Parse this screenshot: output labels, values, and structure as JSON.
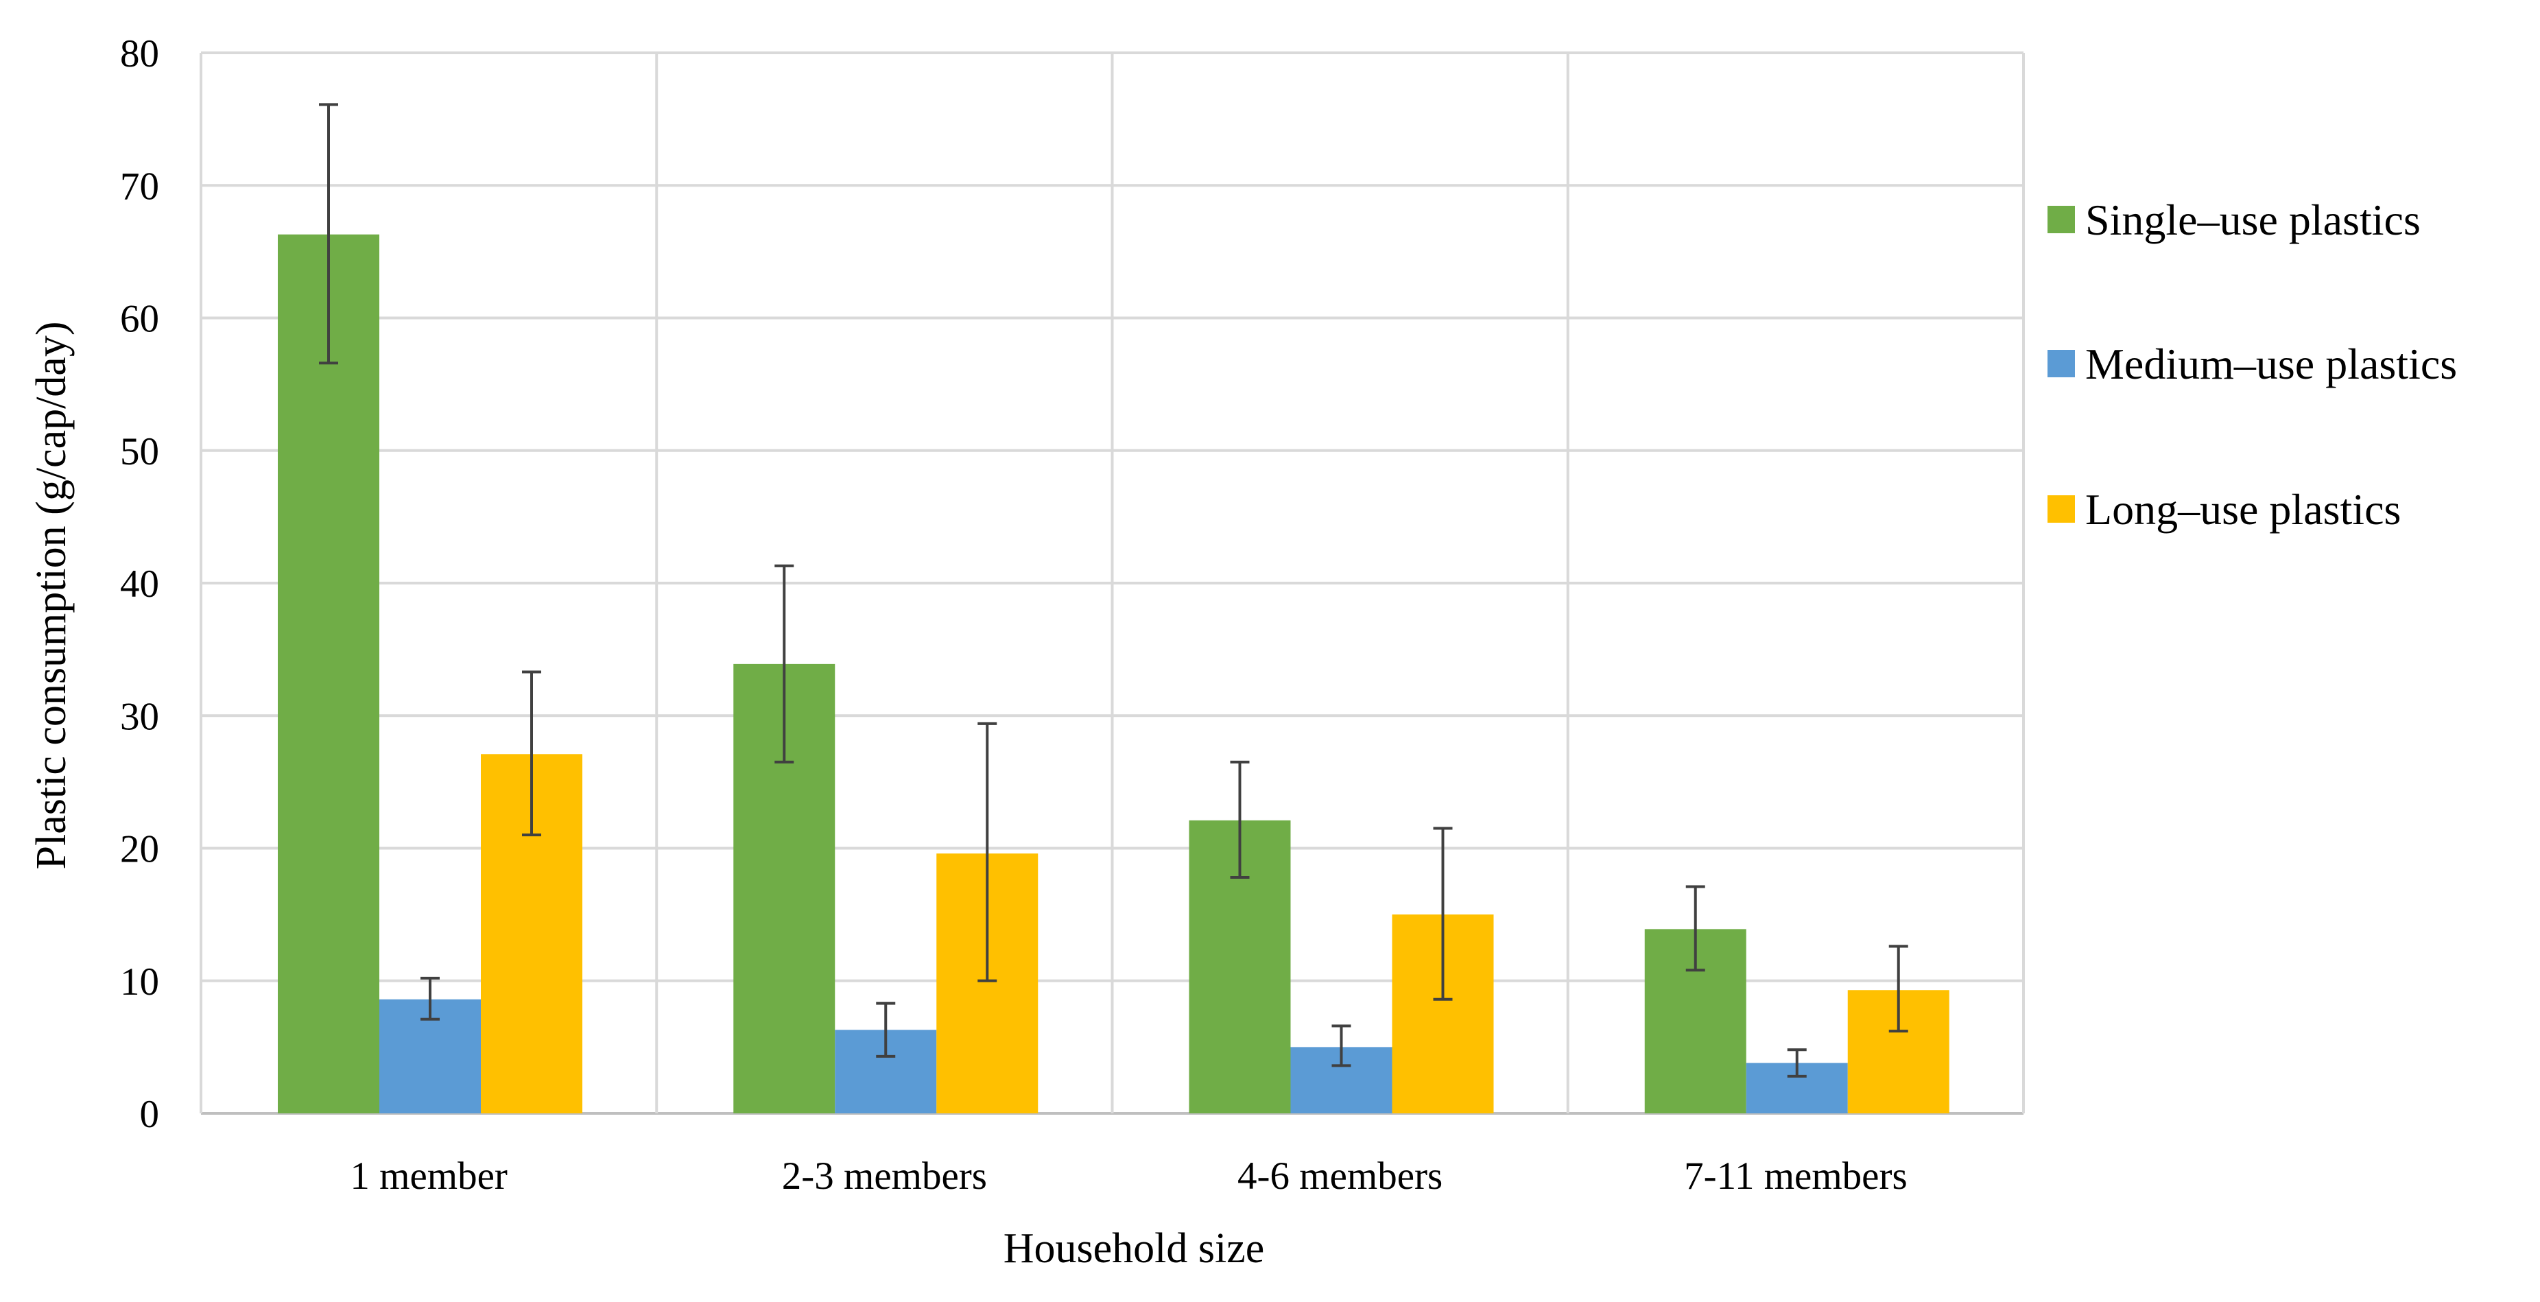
{
  "chart_data": {
    "type": "bar",
    "categories": [
      "1 member",
      "2-3 members",
      "4-6 members",
      "7-11 members"
    ],
    "series": [
      {
        "name": "Single–use plastics",
        "color": "#70ad47",
        "values": [
          66.3,
          33.9,
          22.1,
          13.9
        ],
        "err_high": [
          76.1,
          41.3,
          26.5,
          17.1
        ],
        "err_low": [
          56.6,
          26.5,
          17.8,
          10.8
        ]
      },
      {
        "name": "Medium–use plastics",
        "color": "#5b9bd5",
        "values": [
          8.6,
          6.3,
          5.0,
          3.8
        ],
        "err_high": [
          10.2,
          8.3,
          6.6,
          4.8
        ],
        "err_low": [
          7.1,
          4.3,
          3.6,
          2.8
        ]
      },
      {
        "name": "Long–use plastics",
        "color": "#ffc000",
        "values": [
          27.1,
          19.6,
          15.0,
          9.3
        ],
        "err_high": [
          33.3,
          29.4,
          21.5,
          12.6
        ],
        "err_low": [
          21.0,
          10.0,
          8.6,
          6.2
        ]
      }
    ],
    "xlabel": "Household size",
    "ylabel": "Plastic consumption (g/cap/day)",
    "ylim": [
      0,
      80
    ],
    "yticks": [
      "0",
      "10",
      "20",
      "30",
      "40",
      "50",
      "60",
      "70",
      "80"
    ],
    "grid": true,
    "legend_position": "right"
  }
}
